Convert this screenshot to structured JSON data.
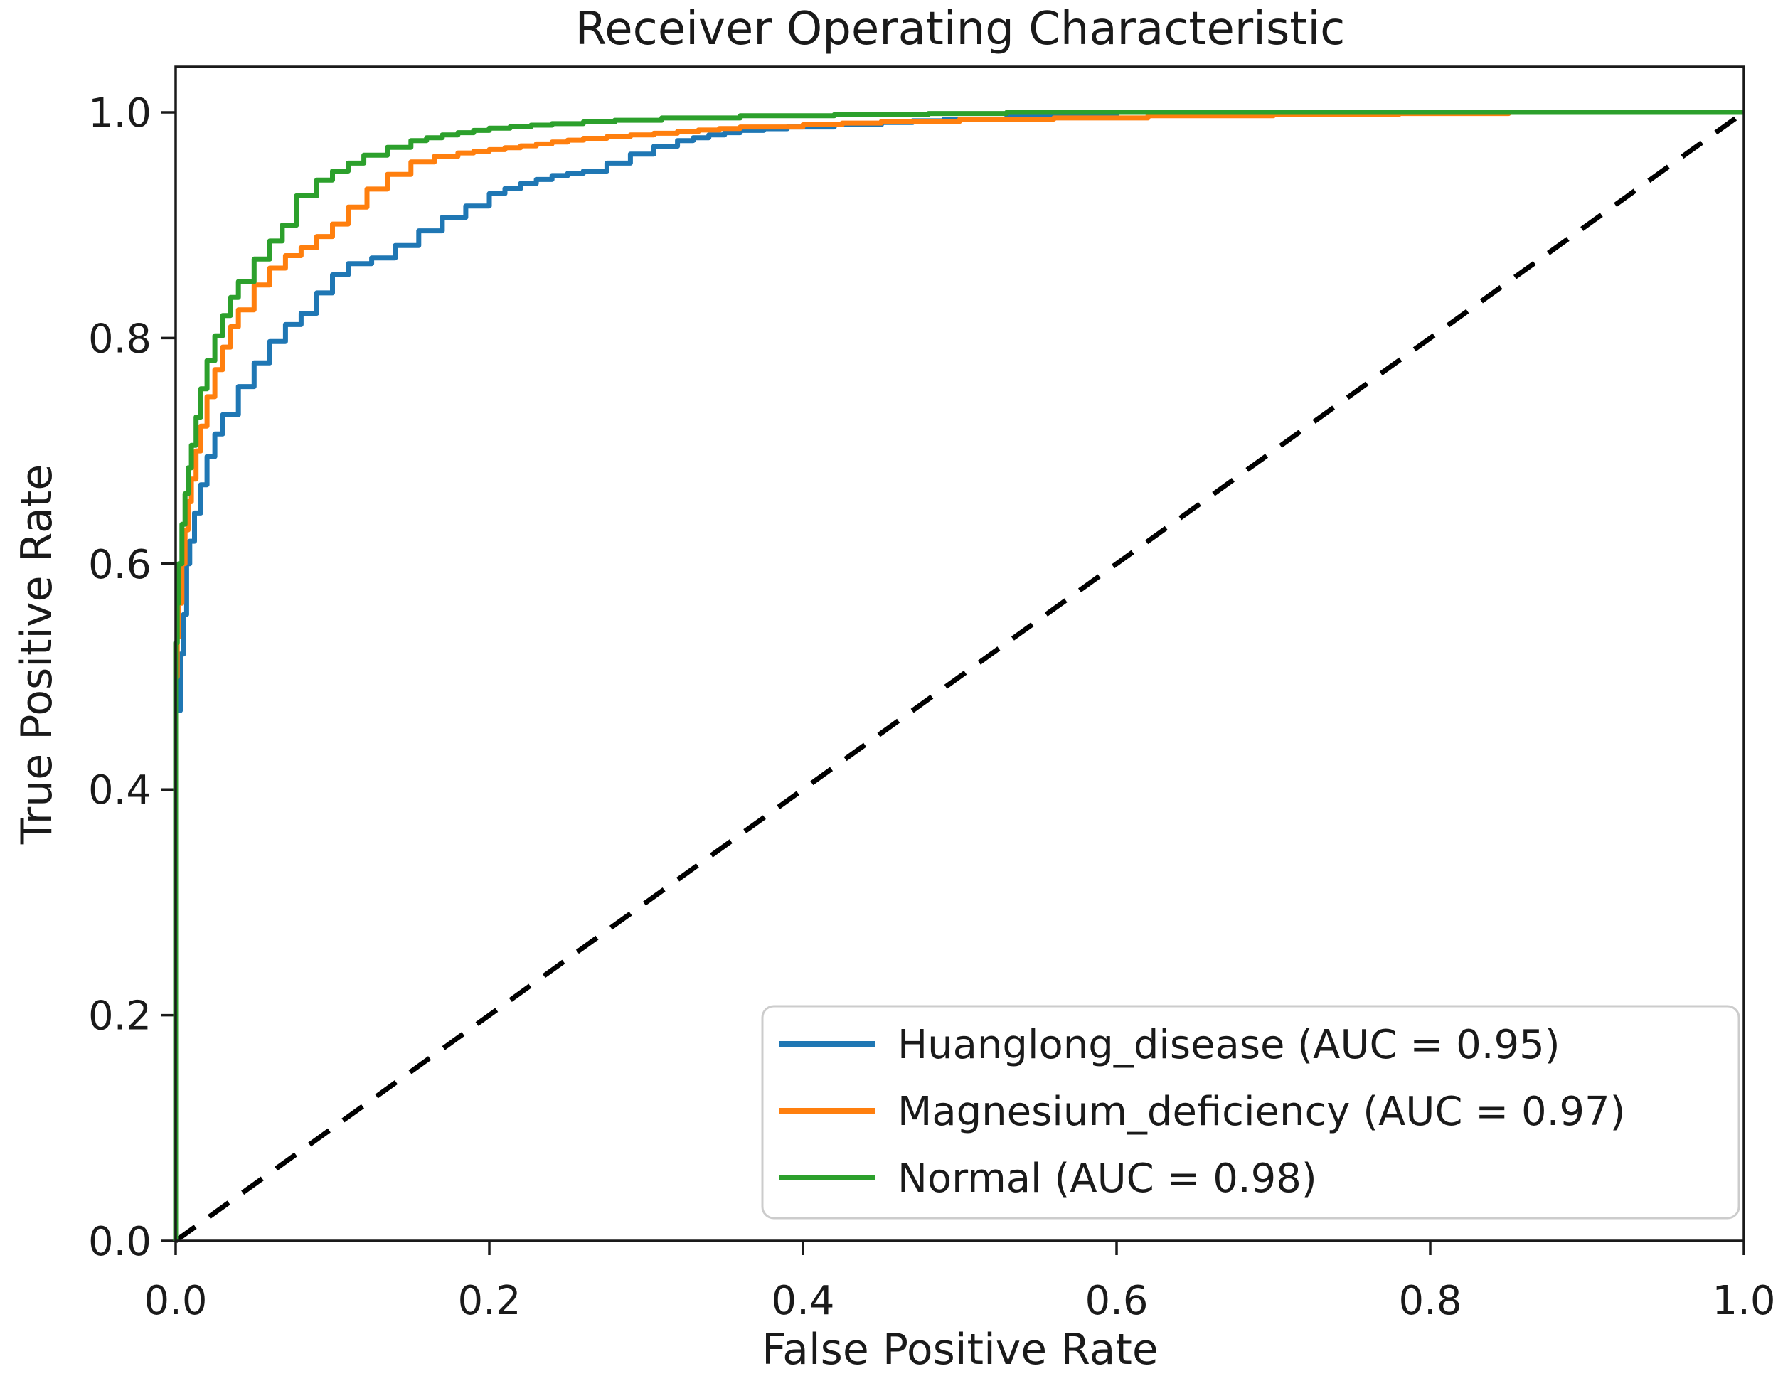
{
  "figure": {
    "background": "#ffffff",
    "text_color": "#1a1a1a",
    "spine_color": "#1a1a1a"
  },
  "chart_data": {
    "type": "line",
    "title": "Receiver Operating Characteristic",
    "xlabel": "False Positive Rate",
    "ylabel": "True Positive Rate",
    "xlim": [
      0.0,
      1.0
    ],
    "ylim": [
      0.0,
      1.04
    ],
    "grid": false,
    "x_ticks": [
      "0.0",
      "0.2",
      "0.4",
      "0.6",
      "0.8",
      "1.0"
    ],
    "y_ticks": [
      "0.0",
      "0.2",
      "0.4",
      "0.6",
      "0.8",
      "1.0"
    ],
    "x_tick_values": [
      0.0,
      0.2,
      0.4,
      0.6,
      0.8,
      1.0
    ],
    "y_tick_values": [
      0.0,
      0.2,
      0.4,
      0.6,
      0.8,
      1.0
    ],
    "legend_position": "lower right",
    "series": [
      {
        "name": "Huanglong_disease",
        "auc": 0.95,
        "label": "Huanglong_disease (AUC = 0.95)",
        "color": "#1f77b4",
        "line_style": "step",
        "points": [
          [
            0,
            0
          ],
          [
            0,
            0.47
          ],
          [
            0.003,
            0.52
          ],
          [
            0.005,
            0.555
          ],
          [
            0.007,
            0.6
          ],
          [
            0.009,
            0.62
          ],
          [
            0.012,
            0.645
          ],
          [
            0.016,
            0.67
          ],
          [
            0.02,
            0.695
          ],
          [
            0.025,
            0.715
          ],
          [
            0.03,
            0.732
          ],
          [
            0.04,
            0.757
          ],
          [
            0.05,
            0.778
          ],
          [
            0.06,
            0.797
          ],
          [
            0.07,
            0.812
          ],
          [
            0.08,
            0.822
          ],
          [
            0.09,
            0.84
          ],
          [
            0.1,
            0.856
          ],
          [
            0.11,
            0.866
          ],
          [
            0.125,
            0.871
          ],
          [
            0.14,
            0.882
          ],
          [
            0.155,
            0.895
          ],
          [
            0.17,
            0.907
          ],
          [
            0.185,
            0.917
          ],
          [
            0.2,
            0.928
          ],
          [
            0.22,
            0.937
          ],
          [
            0.24,
            0.944
          ],
          [
            0.26,
            0.948
          ],
          [
            0.275,
            0.955
          ],
          [
            0.29,
            0.963
          ],
          [
            0.305,
            0.97
          ],
          [
            0.32,
            0.975
          ],
          [
            0.34,
            0.98
          ],
          [
            0.36,
            0.984
          ],
          [
            0.39,
            0.987
          ],
          [
            0.42,
            0.989
          ],
          [
            0.45,
            0.991
          ],
          [
            0.49,
            0.994
          ],
          [
            0.53,
            0.996
          ],
          [
            0.57,
            0.998
          ],
          [
            0.6,
            1.0
          ],
          [
            1.0,
            1.0
          ]
        ]
      },
      {
        "name": "Magnesium_deficiency",
        "auc": 0.97,
        "label": "Magnesium_deficiency (AUC = 0.97)",
        "color": "#ff7f0e",
        "line_style": "step",
        "points": [
          [
            0,
            0
          ],
          [
            0,
            0.5
          ],
          [
            0.001,
            0.535
          ],
          [
            0.002,
            0.565
          ],
          [
            0.004,
            0.6
          ],
          [
            0.006,
            0.63
          ],
          [
            0.008,
            0.655
          ],
          [
            0.01,
            0.675
          ],
          [
            0.013,
            0.7
          ],
          [
            0.016,
            0.722
          ],
          [
            0.02,
            0.748
          ],
          [
            0.025,
            0.772
          ],
          [
            0.03,
            0.792
          ],
          [
            0.035,
            0.81
          ],
          [
            0.04,
            0.825
          ],
          [
            0.05,
            0.847
          ],
          [
            0.06,
            0.862
          ],
          [
            0.07,
            0.873
          ],
          [
            0.08,
            0.88
          ],
          [
            0.09,
            0.89
          ],
          [
            0.1,
            0.901
          ],
          [
            0.11,
            0.916
          ],
          [
            0.122,
            0.932
          ],
          [
            0.135,
            0.945
          ],
          [
            0.15,
            0.956
          ],
          [
            0.165,
            0.961
          ],
          [
            0.18,
            0.964
          ],
          [
            0.2,
            0.967
          ],
          [
            0.23,
            0.972
          ],
          [
            0.26,
            0.977
          ],
          [
            0.29,
            0.98
          ],
          [
            0.32,
            0.983
          ],
          [
            0.36,
            0.987
          ],
          [
            0.4,
            0.989
          ],
          [
            0.45,
            0.992
          ],
          [
            0.5,
            0.994
          ],
          [
            0.56,
            0.995
          ],
          [
            0.62,
            0.997
          ],
          [
            0.7,
            0.998
          ],
          [
            0.78,
            0.999
          ],
          [
            0.85,
            1.0
          ],
          [
            1.0,
            1.0
          ]
        ]
      },
      {
        "name": "Normal",
        "auc": 0.98,
        "label": "Normal (AUC = 0.98)",
        "color": "#2ca02c",
        "line_style": "step",
        "points": [
          [
            0,
            0
          ],
          [
            0,
            0.53
          ],
          [
            0.001,
            0.565
          ],
          [
            0.002,
            0.6
          ],
          [
            0.004,
            0.635
          ],
          [
            0.006,
            0.662
          ],
          [
            0.008,
            0.685
          ],
          [
            0.01,
            0.705
          ],
          [
            0.013,
            0.73
          ],
          [
            0.016,
            0.755
          ],
          [
            0.02,
            0.78
          ],
          [
            0.025,
            0.802
          ],
          [
            0.03,
            0.82
          ],
          [
            0.035,
            0.836
          ],
          [
            0.04,
            0.85
          ],
          [
            0.05,
            0.87
          ],
          [
            0.06,
            0.886
          ],
          [
            0.068,
            0.9
          ],
          [
            0.077,
            0.926
          ],
          [
            0.09,
            0.94
          ],
          [
            0.1,
            0.948
          ],
          [
            0.11,
            0.955
          ],
          [
            0.12,
            0.962
          ],
          [
            0.135,
            0.969
          ],
          [
            0.15,
            0.975
          ],
          [
            0.17,
            0.98
          ],
          [
            0.2,
            0.986
          ],
          [
            0.24,
            0.99
          ],
          [
            0.28,
            0.993
          ],
          [
            0.31,
            0.995
          ],
          [
            0.36,
            0.997
          ],
          [
            0.42,
            0.998
          ],
          [
            0.48,
            0.999
          ],
          [
            0.53,
            1.0
          ],
          [
            1.0,
            1.0
          ]
        ]
      }
    ],
    "reference_line": {
      "name": "chance-diagonal",
      "color": "#000000",
      "line_style": "dashed",
      "points": [
        [
          0,
          0
        ],
        [
          1,
          1
        ]
      ]
    }
  },
  "legend": {
    "entries": [
      {
        "label": "Huanglong_disease (AUC = 0.95)",
        "color": "#1f77b4"
      },
      {
        "label": "Magnesium_deficiency (AUC = 0.97)",
        "color": "#ff7f0e"
      },
      {
        "label": "Normal (AUC = 0.98)",
        "color": "#2ca02c"
      }
    ]
  }
}
